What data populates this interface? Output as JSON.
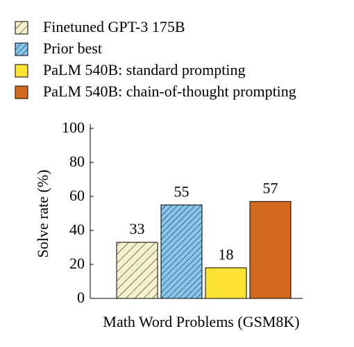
{
  "chart_data": {
    "type": "bar",
    "xlabel": "Math Word Problems (GSM8K)",
    "ylabel": "Solve rate (%)",
    "ylim": [
      0,
      100
    ],
    "yticks": [
      0,
      20,
      40,
      60,
      80,
      100
    ],
    "series": [
      {
        "name": "Finetuned GPT-3 175B",
        "color": "#f6f1cc",
        "hatch": "sparse",
        "values": [
          33
        ]
      },
      {
        "name": "Prior best",
        "color": "#86c5ec",
        "hatch": "dense",
        "values": [
          55
        ]
      },
      {
        "name": "PaLM 540B: standard prompting",
        "color": "#fde236",
        "values": [
          18
        ]
      },
      {
        "name": "PaLM 540B: chain-of-thought prompting",
        "color": "#d2691e",
        "values": [
          57
        ]
      }
    ]
  }
}
